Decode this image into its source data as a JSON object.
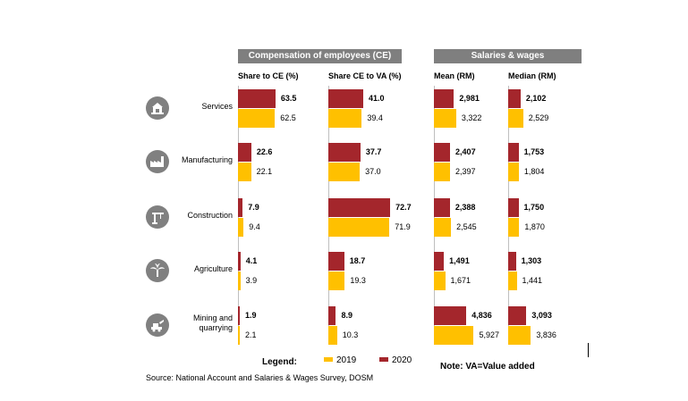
{
  "headers": {
    "ce": "Compensation of employees (CE)",
    "sw": "Salaries & wages"
  },
  "columns": [
    "Share to CE (%)",
    "Share CE to VA (%)",
    "Mean (RM)",
    "Median (RM)"
  ],
  "legend": {
    "title": "Legend:",
    "items": [
      {
        "label": "2019",
        "color": "#FFC000"
      },
      {
        "label": "2020",
        "color": "#A4262C"
      }
    ]
  },
  "note": "Note: VA=Value added",
  "source": "Source: National Account and Salaries & Wages Survey, DOSM",
  "chart_data": {
    "type": "bar",
    "categories": [
      "Services",
      "Manufacturing",
      "Construction",
      "Agriculture",
      "Mining and quarrying"
    ],
    "icons": [
      "services-icon",
      "manufacturing-icon",
      "construction-icon",
      "agriculture-icon",
      "mining-icon"
    ],
    "panels": [
      {
        "name": "Share to CE (%)",
        "series": [
          {
            "name": "2020",
            "values": [
              63.5,
              22.6,
              7.9,
              4.1,
              1.9
            ],
            "labels": [
              "63.5",
              "22.6",
              "7.9",
              "4.1",
              "1.9"
            ]
          },
          {
            "name": "2019",
            "values": [
              62.5,
              22.1,
              9.4,
              3.9,
              2.1
            ],
            "labels": [
              "62.5",
              "22.1",
              "9.4",
              "3.9",
              "2.1"
            ]
          }
        ]
      },
      {
        "name": "Share CE to VA (%)",
        "series": [
          {
            "name": "2020",
            "values": [
              41.0,
              37.7,
              72.7,
              18.7,
              8.9
            ],
            "labels": [
              "41.0",
              "37.7",
              "72.7",
              "18.7",
              "8.9"
            ]
          },
          {
            "name": "2019",
            "values": [
              39.4,
              37.0,
              71.9,
              19.3,
              10.3
            ],
            "labels": [
              "39.4",
              "37.0",
              "71.9",
              "19.3",
              "10.3"
            ]
          }
        ]
      },
      {
        "name": "Mean (RM)",
        "series": [
          {
            "name": "2020",
            "values": [
              2981,
              2407,
              2388,
              1491,
              4836
            ],
            "labels": [
              "2,981",
              "2,407",
              "2,388",
              "1,491",
              "4,836"
            ]
          },
          {
            "name": "2019",
            "values": [
              3322,
              2397,
              2545,
              1671,
              5927
            ],
            "labels": [
              "3,322",
              "2,397",
              "2,545",
              "1,671",
              "5,927"
            ]
          }
        ]
      },
      {
        "name": "Median (RM)",
        "series": [
          {
            "name": "2020",
            "values": [
              2102,
              1753,
              1750,
              1303,
              3093
            ],
            "labels": [
              "2,102",
              "1,753",
              "1,750",
              "1,303",
              "3,093"
            ]
          },
          {
            "name": "2019",
            "values": [
              2529,
              1804,
              1870,
              1441,
              3836
            ],
            "labels": [
              "2,529",
              "1,804",
              "1,870",
              "1,441",
              "3,836"
            ]
          }
        ]
      }
    ]
  }
}
